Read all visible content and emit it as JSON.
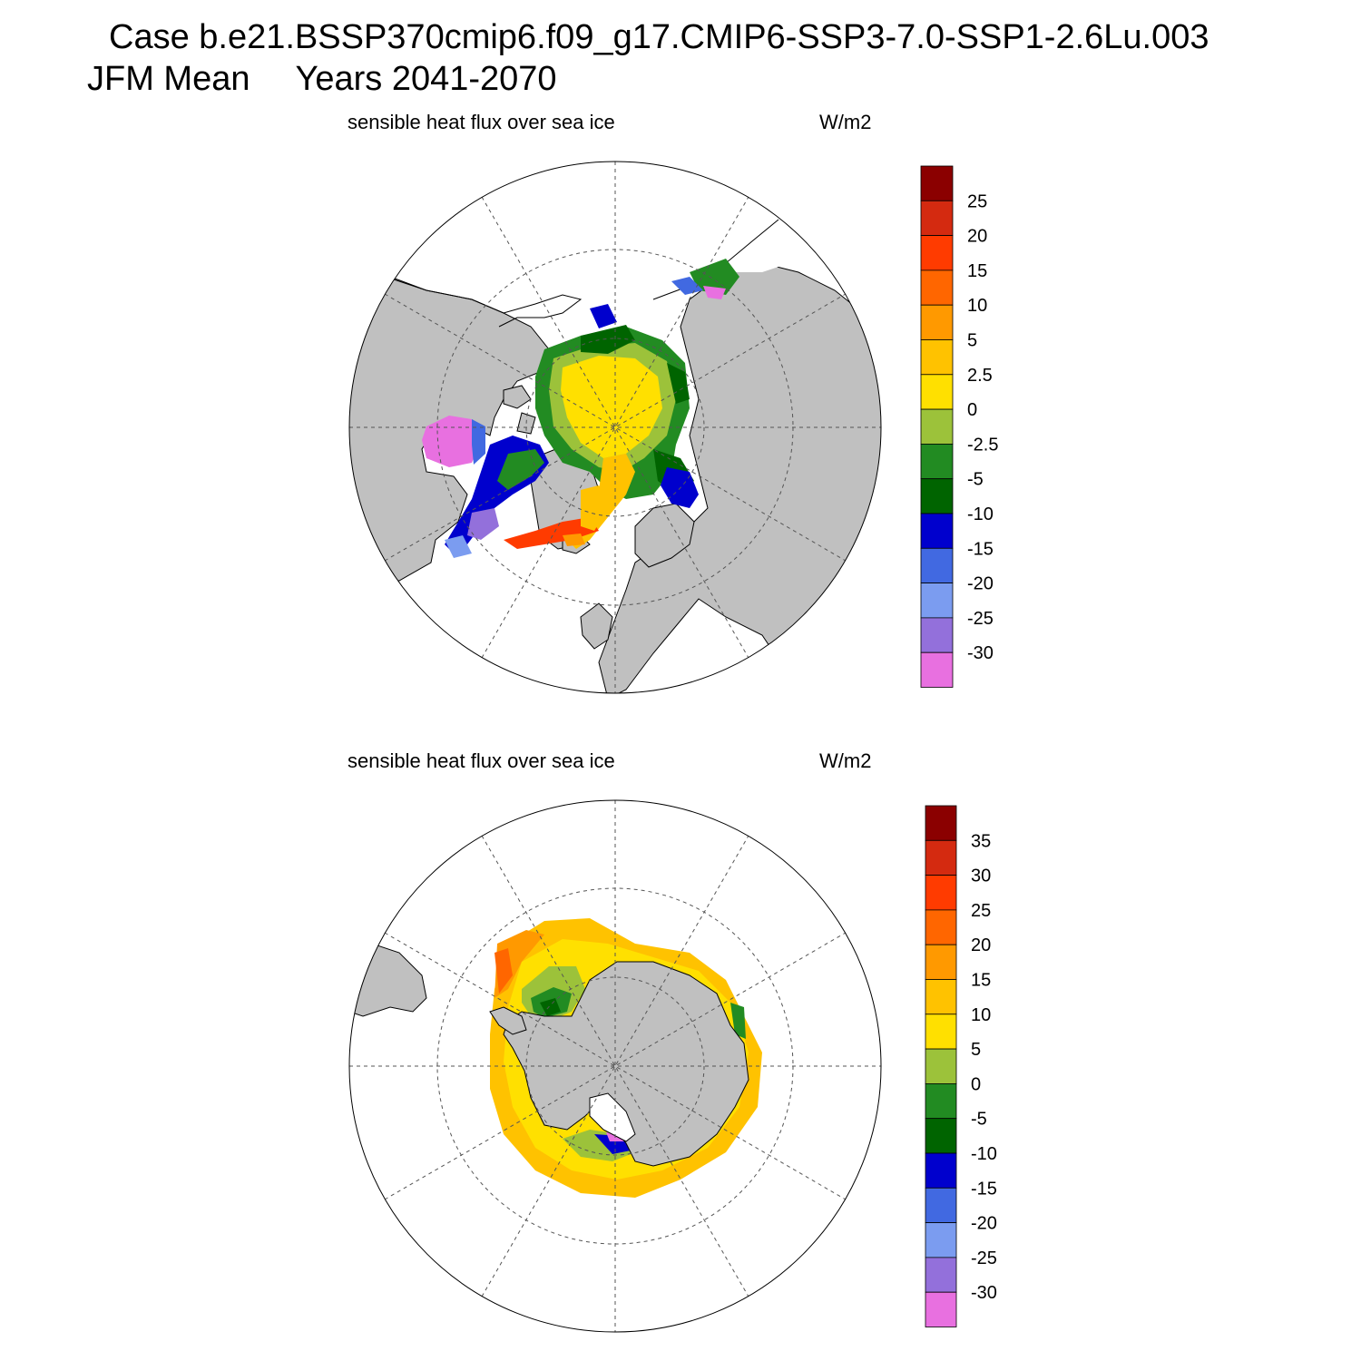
{
  "header": {
    "case_line": "Case b.e21.BSSP370cmip6.f09_g17.CMIP6-SSP3-7.0-SSP1-2.6Lu.003",
    "season": "JFM Mean",
    "years": "Years 2041-2070"
  },
  "panels": [
    {
      "hemisphere": "north",
      "variable_label": "sensible heat flux over sea ice",
      "units": "W/m2",
      "colorbar": {
        "colors": [
          "#8b0000",
          "#d42a10",
          "#ff3b00",
          "#ff6600",
          "#ff9900",
          "#ffc200",
          "#ffe000",
          "#9cc23a",
          "#228b22",
          "#006400",
          "#0000cd",
          "#4169e1",
          "#7b9cf0",
          "#9370db",
          "#e870e0"
        ],
        "labels": [
          "25",
          "20",
          "15",
          "10",
          "5",
          "2.5",
          "0",
          "-2.5",
          "-5",
          "-10",
          "-15",
          "-20",
          "-25",
          "-30"
        ]
      }
    },
    {
      "hemisphere": "south",
      "variable_label": "sensible heat flux over sea ice",
      "units": "W/m2",
      "colorbar": {
        "colors": [
          "#8b0000",
          "#d42a10",
          "#ff3b00",
          "#ff6600",
          "#ff9900",
          "#ffc200",
          "#ffe000",
          "#9cc23a",
          "#228b22",
          "#006400",
          "#0000cd",
          "#4169e1",
          "#7b9cf0",
          "#9370db",
          "#e870e0"
        ],
        "labels": [
          "35",
          "30",
          "25",
          "20",
          "15",
          "10",
          "5",
          "0",
          "-5",
          "-10",
          "-15",
          "-20",
          "-25",
          "-30"
        ]
      }
    }
  ],
  "map_colors": {
    "land": "#c0c0c0",
    "ocean": "#ffffff",
    "grid": "#555555"
  }
}
